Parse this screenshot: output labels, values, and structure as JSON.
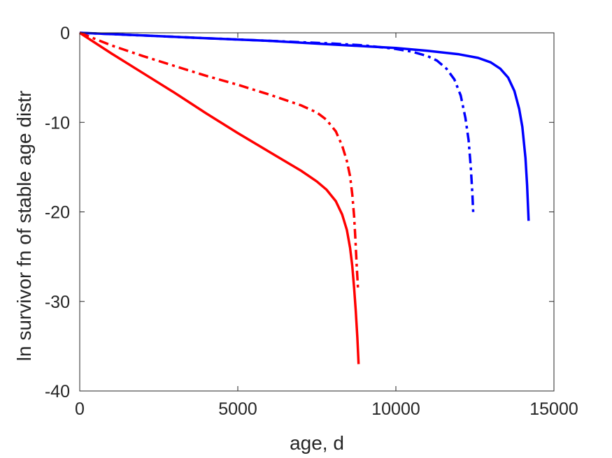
{
  "chart_data": {
    "type": "line",
    "title": "",
    "xlabel": "age, d",
    "ylabel": "ln survivor fn of stable age distr",
    "xlim": [
      0,
      15000
    ],
    "ylim": [
      -40,
      0
    ],
    "xticks": [
      0,
      5000,
      10000,
      15000
    ],
    "yticks": [
      0,
      -10,
      -20,
      -30,
      -40
    ],
    "xtick_labels": [
      "0",
      "5000",
      "10000",
      "15000"
    ],
    "ytick_labels": [
      "0",
      "-10",
      "-20",
      "-30",
      "-40"
    ],
    "grid": false,
    "legend": "none",
    "series": [
      {
        "color": "#0000ff",
        "style": "solid",
        "x": [
          0,
          2000,
          4000,
          6000,
          8000,
          10000,
          11000,
          12000,
          12600,
          13000,
          13300,
          13550,
          13750,
          13900,
          14000,
          14100,
          14150,
          14200
        ],
        "y": [
          0,
          -0.3,
          -0.6,
          -0.9,
          -1.3,
          -1.7,
          -2.0,
          -2.4,
          -2.8,
          -3.3,
          -4.0,
          -5.0,
          -6.5,
          -8.5,
          -10.5,
          -14.0,
          -17.0,
          -21.0
        ]
      },
      {
        "color": "#0000ff",
        "style": "dashdot",
        "x": [
          0,
          2000,
          4000,
          6000,
          8000,
          9000,
          10000,
          10500,
          11000,
          11300,
          11600,
          11850,
          12050,
          12200,
          12300,
          12370,
          12420,
          12450
        ],
        "y": [
          0,
          -0.3,
          -0.6,
          -0.9,
          -1.2,
          -1.4,
          -1.8,
          -2.1,
          -2.6,
          -3.1,
          -4.0,
          -5.2,
          -7.0,
          -9.5,
          -12.0,
          -15.0,
          -18.0,
          -20.3
        ]
      },
      {
        "color": "#ff0000",
        "style": "solid",
        "x": [
          0,
          1000,
          2000,
          3000,
          4000,
          5000,
          6000,
          7000,
          7500,
          7800,
          8100,
          8300,
          8450,
          8550,
          8620,
          8680,
          8730,
          8780,
          8820
        ],
        "y": [
          0,
          -2.3,
          -4.5,
          -6.7,
          -9.0,
          -11.2,
          -13.3,
          -15.4,
          -16.6,
          -17.5,
          -18.8,
          -20.3,
          -22.0,
          -24.0,
          -26.0,
          -28.5,
          -31.0,
          -34.0,
          -37.0
        ]
      },
      {
        "color": "#ff0000",
        "style": "dashdot",
        "x": [
          0,
          1000,
          2000,
          3000,
          4000,
          5000,
          6000,
          7000,
          7500,
          7800,
          8100,
          8300,
          8450,
          8550,
          8620,
          8680,
          8720,
          8760,
          8800
        ],
        "y": [
          0,
          -1.4,
          -2.6,
          -3.7,
          -4.8,
          -5.8,
          -6.9,
          -8.1,
          -8.9,
          -9.7,
          -11.0,
          -12.6,
          -14.3,
          -16.0,
          -18.0,
          -20.5,
          -23.0,
          -26.0,
          -28.5
        ]
      }
    ]
  }
}
